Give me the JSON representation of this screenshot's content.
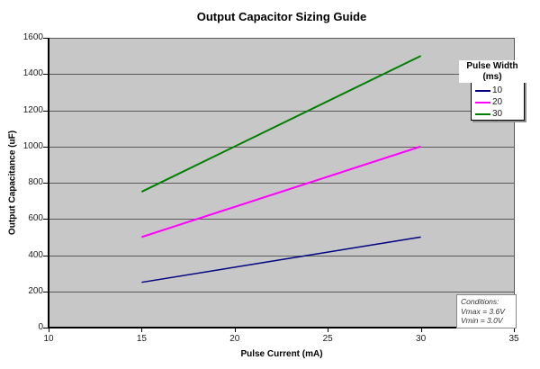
{
  "title": "Output Capacitor Sizing Guide",
  "axes": {
    "x_title": "Pulse Current (mA)",
    "y_title": "Output Capacitance (uF)"
  },
  "legend": {
    "title_line1": "Pulse Width",
    "title_line2": "(ms)"
  },
  "conditions": {
    "line1": "Conditions:",
    "line2": "Vmax = 3.6V",
    "line3": "Vmin = 3.0V"
  },
  "colors": {
    "plot_background": "#C7C7C7",
    "gridline": "#595959",
    "axis": "#000000",
    "series_10ms": "#000080",
    "series_20ms": "#FF00FF",
    "series_30ms": "#008000"
  },
  "chart_data": {
    "type": "line",
    "title": "Output Capacitor Sizing Guide",
    "xlabel": "Pulse Current (mA)",
    "ylabel": "Output Capacitance (uF)",
    "xlim": [
      10,
      35
    ],
    "ylim": [
      0,
      1600
    ],
    "x_ticks": [
      10,
      15,
      20,
      25,
      30,
      35
    ],
    "y_ticks": [
      0,
      200,
      400,
      600,
      800,
      1000,
      1200,
      1400,
      1600
    ],
    "grid": "horizontal-major",
    "plot_background": "#C7C7C7",
    "legend_title": "Pulse Width (ms)",
    "legend_position": "inside-top-right",
    "series": [
      {
        "name": "10",
        "color": "#000080",
        "stroke_width": 1.5,
        "x": [
          15,
          30
        ],
        "y": [
          250,
          500
        ]
      },
      {
        "name": "20",
        "color": "#FF00FF",
        "stroke_width": 2,
        "x": [
          15,
          30
        ],
        "y": [
          500,
          1000
        ]
      },
      {
        "name": "30",
        "color": "#008000",
        "stroke_width": 2,
        "x": [
          15,
          30
        ],
        "y": [
          750,
          1500
        ]
      }
    ],
    "annotations": [
      {
        "text": [
          "Conditions:",
          "Vmax = 3.6V",
          "Vmin = 3.0V"
        ],
        "position": "inside-bottom-right",
        "style": "italic"
      }
    ]
  }
}
